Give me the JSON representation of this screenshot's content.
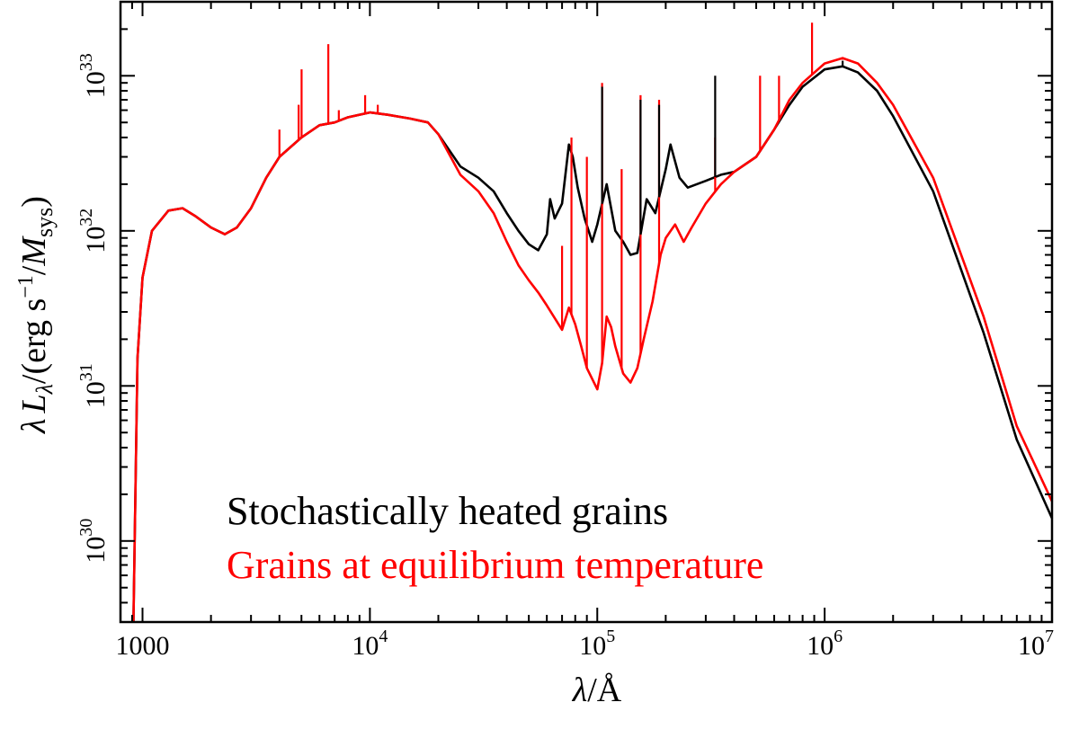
{
  "chart_data": {
    "type": "line",
    "title": "",
    "xlabel": "λ/Å",
    "ylabel": "λ L_λ/(erg s^-1/M_sys)",
    "xscale": "log",
    "yscale": "log",
    "xlim": [
      800,
      10000000
    ],
    "ylim": [
      3e+29,
      3e+33
    ],
    "grid": false,
    "legend_placement": "bottom-left",
    "x_ticks": [
      {
        "value": 1000,
        "base": "1000",
        "exp": ""
      },
      {
        "value": 10000,
        "base": "10",
        "exp": "4"
      },
      {
        "value": 100000,
        "base": "10",
        "exp": "5"
      },
      {
        "value": 1000000,
        "base": "10",
        "exp": "6"
      },
      {
        "value": 10000000,
        "base": "10",
        "exp": "7"
      }
    ],
    "y_ticks": [
      {
        "value": 1e+30,
        "base": "10",
        "exp": "30"
      },
      {
        "value": 1e+31,
        "base": "10",
        "exp": "31"
      },
      {
        "value": 1e+32,
        "base": "10",
        "exp": "32"
      },
      {
        "value": 1e+33,
        "base": "10",
        "exp": "33"
      }
    ],
    "series": [
      {
        "name": "Stochastically heated grains",
        "color": "#000000",
        "x": [
          912,
          950,
          1000,
          1100,
          1300,
          1500,
          1700,
          2000,
          2300,
          2600,
          3000,
          3500,
          4000,
          5000,
          6000,
          7000,
          8000,
          10000,
          12000,
          15000,
          18000,
          20000,
          25000,
          30000,
          35000,
          40000,
          45000,
          50000,
          55000,
          60000,
          62000,
          65000,
          70000,
          75000,
          78000,
          82000,
          88000,
          95000,
          100000,
          110000,
          120000,
          130000,
          140000,
          150000,
          165000,
          180000,
          200000,
          210000,
          230000,
          250000,
          300000,
          350000,
          400000,
          500000,
          600000,
          700000,
          800000,
          1000000,
          1200000,
          1400000,
          1700000,
          2000000,
          3000000,
          5000000,
          7000000,
          10000000
        ],
        "y": [
          3e+29,
          1.5e+31,
          5e+31,
          1e+32,
          1.35e+32,
          1.4e+32,
          1.25e+32,
          1.05e+32,
          9.5e+31,
          1.05e+32,
          1.4e+32,
          2.2e+32,
          3e+32,
          4e+32,
          4.8e+32,
          5e+32,
          5.4e+32,
          5.8e+32,
          5.6e+32,
          5.3e+32,
          5e+32,
          4.2e+32,
          2.6e+32,
          2.2e+32,
          1.8e+32,
          1.3e+32,
          1e+32,
          8.2e+31,
          7.5e+31,
          9.5e+31,
          1.6e+32,
          1.2e+32,
          1.5e+32,
          3.6e+32,
          3e+32,
          1.9e+32,
          1.2e+32,
          8.5e+31,
          1.1e+32,
          2e+32,
          1e+32,
          8.5e+31,
          7e+31,
          7.2e+31,
          1.6e+32,
          1.3e+32,
          2.5e+32,
          3.6e+32,
          2.2e+32,
          1.9e+32,
          2.1e+32,
          2.3e+32,
          2.4e+32,
          3e+32,
          4.5e+32,
          6.5e+32,
          8.5e+32,
          1.1e+33,
          1.15e+33,
          1.05e+33,
          8e+32,
          5.5e+32,
          1.8e+32,
          2.2e+31,
          4.5e+30,
          1.4e+30
        ]
      },
      {
        "name": "Grains at equilibrium temperature",
        "color": "#ff0000",
        "x": [
          912,
          950,
          1000,
          1100,
          1300,
          1500,
          1700,
          2000,
          2300,
          2600,
          3000,
          3500,
          4000,
          5000,
          6000,
          7000,
          8000,
          10000,
          12000,
          15000,
          18000,
          20000,
          25000,
          30000,
          35000,
          40000,
          45000,
          50000,
          55000,
          60000,
          70000,
          75000,
          80000,
          85000,
          90000,
          100000,
          105000,
          110000,
          115000,
          120000,
          130000,
          140000,
          150000,
          160000,
          175000,
          190000,
          200000,
          220000,
          240000,
          260000,
          300000,
          350000,
          400000,
          500000,
          600000,
          700000,
          800000,
          1000000,
          1200000,
          1400000,
          1700000,
          2000000,
          3000000,
          5000000,
          7000000,
          10000000
        ],
        "y": [
          3e+29,
          1.5e+31,
          5e+31,
          1e+32,
          1.35e+32,
          1.4e+32,
          1.25e+32,
          1.05e+32,
          9.5e+31,
          1.05e+32,
          1.4e+32,
          2.2e+32,
          3e+32,
          4e+32,
          4.8e+32,
          5e+32,
          5.4e+32,
          5.8e+32,
          5.6e+32,
          5.3e+32,
          5e+32,
          4.2e+32,
          2.3e+32,
          1.8e+32,
          1.3e+32,
          8.5e+31,
          6e+31,
          4.8e+31,
          4e+31,
          3.3e+31,
          2.3e+31,
          3.2e+31,
          2.5e+31,
          1.8e+31,
          1.3e+31,
          9.5e+30,
          1.4e+31,
          2.8e+31,
          2.4e+31,
          1.8e+31,
          1.2e+31,
          1.05e+31,
          1.3e+31,
          2e+31,
          3.5e+31,
          7e+31,
          9e+31,
          1.1e+32,
          8.5e+31,
          1.05e+32,
          1.5e+32,
          2e+32,
          2.4e+32,
          3e+32,
          4.5e+32,
          7e+32,
          9e+32,
          1.2e+33,
          1.3e+33,
          1.2e+33,
          9e+32,
          6.5e+32,
          2.2e+32,
          2.8e+31,
          5.5e+30,
          1.8e+30
        ]
      }
    ],
    "line_spikes": [
      {
        "series": 1,
        "x": 4000,
        "y_top": 4.5e+32
      },
      {
        "series": 1,
        "x": 4860,
        "y_top": 6.5e+32
      },
      {
        "series": 1,
        "x": 5007,
        "y_top": 1.1e+33
      },
      {
        "series": 1,
        "x": 6563,
        "y_top": 1.6e+33
      },
      {
        "series": 1,
        "x": 7300,
        "y_top": 6e+32
      },
      {
        "series": 1,
        "x": 9530,
        "y_top": 7.5e+32
      },
      {
        "series": 1,
        "x": 10830,
        "y_top": 6.5e+32
      },
      {
        "series": 1,
        "x": 70000,
        "y_top": 8e+31
      },
      {
        "series": 1,
        "x": 77000,
        "y_top": 4e+32
      },
      {
        "series": 1,
        "x": 90000,
        "y_top": 3e+32
      },
      {
        "series": 1,
        "x": 105000,
        "y_top": 9e+32
      },
      {
        "series": 1,
        "x": 128000,
        "y_top": 2.5e+32
      },
      {
        "series": 1,
        "x": 155000,
        "y_top": 7.5e+32
      },
      {
        "series": 1,
        "x": 187000,
        "y_top": 7e+32
      },
      {
        "series": 1,
        "x": 330000,
        "y_top": 4e+32
      },
      {
        "series": 1,
        "x": 520000,
        "y_top": 1e+33
      },
      {
        "series": 1,
        "x": 630000,
        "y_top": 1e+33
      },
      {
        "series": 1,
        "x": 880000,
        "y_top": 2.2e+33
      },
      {
        "series": 0,
        "x": 105000,
        "y_top": 8.5e+32
      },
      {
        "series": 0,
        "x": 155000,
        "y_top": 7e+32
      },
      {
        "series": 0,
        "x": 187000,
        "y_top": 6.5e+32
      },
      {
        "series": 0,
        "x": 330000,
        "y_top": 1e+33
      },
      {
        "series": 0,
        "x": 1200000,
        "y_top": 1.25e+33
      }
    ]
  }
}
